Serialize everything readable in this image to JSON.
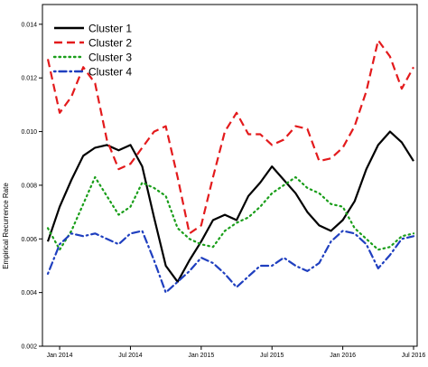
{
  "chart_data": {
    "type": "line",
    "title": "",
    "xlabel": "",
    "ylabel": "Empirical Recurrence Rate",
    "x": [
      "2013-12",
      "2014-01",
      "2014-02",
      "2014-03",
      "2014-04",
      "2014-05",
      "2014-06",
      "2014-07",
      "2014-08",
      "2014-09",
      "2014-10",
      "2014-11",
      "2014-12",
      "2015-01",
      "2015-02",
      "2015-03",
      "2015-04",
      "2015-05",
      "2015-06",
      "2015-07",
      "2015-08",
      "2015-09",
      "2015-10",
      "2015-11",
      "2015-12",
      "2016-01",
      "2016-02",
      "2016-03",
      "2016-04",
      "2016-05",
      "2016-06",
      "2016-07"
    ],
    "x_ticks": [
      {
        "date": "2014-01",
        "label": "Jan 2014"
      },
      {
        "date": "2014-07",
        "label": "Jul 2014"
      },
      {
        "date": "2015-01",
        "label": "Jan 2015"
      },
      {
        "date": "2015-07",
        "label": "Jul 2015"
      },
      {
        "date": "2016-01",
        "label": "Jan 2016"
      },
      {
        "date": "2016-07",
        "label": "Jul 2016"
      }
    ],
    "ylim": [
      0.002,
      0.0145
    ],
    "y_ticks": [
      0.002,
      0.004,
      0.006,
      0.008,
      0.01,
      0.012,
      0.014
    ],
    "y_tick_labels": [
      "0.002",
      "0.004",
      "0.006",
      "0.008",
      "0.010",
      "0.012",
      "0.014"
    ],
    "grid": false,
    "legend_position": "top-left",
    "series": [
      {
        "name": "Cluster 1",
        "color": "#000000",
        "dash": "solid",
        "values": [
          0.0059,
          0.0072,
          0.0082,
          0.0091,
          0.0094,
          0.0095,
          0.0093,
          0.0095,
          0.0087,
          0.0068,
          0.005,
          0.0044,
          0.0052,
          0.0059,
          0.0067,
          0.0069,
          0.0067,
          0.0076,
          0.0081,
          0.0087,
          0.0082,
          0.0077,
          0.007,
          0.0065,
          0.0063,
          0.0067,
          0.0074,
          0.0086,
          0.0095,
          0.01,
          0.0096,
          0.0089
        ]
      },
      {
        "name": "Cluster 2",
        "color": "#e31a1c",
        "dash": "dashed",
        "values": [
          0.0127,
          0.0107,
          0.0113,
          0.0124,
          0.0118,
          0.0097,
          0.0086,
          0.0088,
          0.0094,
          0.01,
          0.0102,
          0.0083,
          0.0062,
          0.0065,
          0.0083,
          0.01,
          0.0107,
          0.0099,
          0.0099,
          0.0095,
          0.0097,
          0.0102,
          0.0101,
          0.0089,
          0.009,
          0.0094,
          0.0102,
          0.0115,
          0.0134,
          0.0128,
          0.0116,
          0.0124
        ]
      },
      {
        "name": "Cluster 3",
        "color": "#1a9e1a",
        "dash": "dotted",
        "values": [
          0.0064,
          0.0056,
          0.0063,
          0.0073,
          0.0083,
          0.0076,
          0.0069,
          0.0072,
          0.0081,
          0.0079,
          0.0076,
          0.0064,
          0.006,
          0.0058,
          0.0057,
          0.0063,
          0.0066,
          0.0068,
          0.0072,
          0.0077,
          0.008,
          0.0083,
          0.0079,
          0.0077,
          0.0073,
          0.0072,
          0.0064,
          0.006,
          0.0056,
          0.0057,
          0.0061,
          0.0062
        ]
      },
      {
        "name": "Cluster 4",
        "color": "#1f3fbf",
        "dash": "dotdash",
        "values": [
          0.0047,
          0.0058,
          0.0062,
          0.0061,
          0.0062,
          0.006,
          0.0058,
          0.0062,
          0.0063,
          0.0052,
          0.004,
          0.0044,
          0.0048,
          0.0053,
          0.0051,
          0.0047,
          0.0042,
          0.0046,
          0.005,
          0.005,
          0.0053,
          0.005,
          0.0048,
          0.0051,
          0.0059,
          0.0063,
          0.0062,
          0.0058,
          0.0049,
          0.0054,
          0.006,
          0.0061
        ]
      }
    ]
  }
}
